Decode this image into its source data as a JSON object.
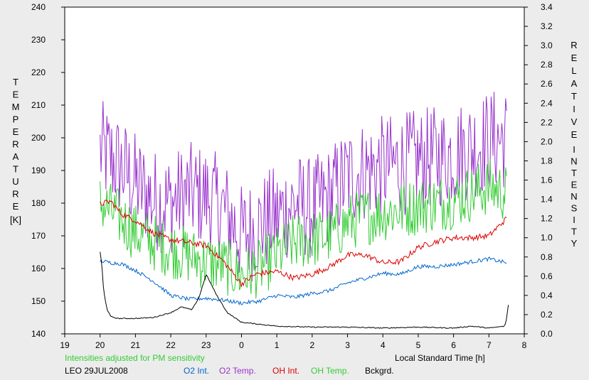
{
  "chart_data": {
    "type": "line",
    "title": "",
    "xlabel": "Local Standard Time [h]",
    "ylabel_left": "TEMPERATURE [K]",
    "ylabel_left_letters": [
      "T",
      "E",
      "M",
      "P",
      "E",
      "R",
      "A",
      "T",
      "U",
      "R",
      "E"
    ],
    "ylabel_left_unit": "[K]",
    "ylabel_right": "RELATIVE INTENSITY",
    "ylabel_right_word1": [
      "R",
      "E",
      "L",
      "A",
      "T",
      "I",
      "V",
      "E"
    ],
    "ylabel_right_word2": [
      "I",
      "N",
      "T",
      "E",
      "N",
      "S",
      "I",
      "T",
      "Y"
    ],
    "note": "Intensities adjusted for PM sensitivity",
    "station_date": "LEO 29JUL2008",
    "xlim": [
      19,
      32
    ],
    "ylim_left": [
      140,
      240
    ],
    "ylim_right": [
      0.0,
      3.4
    ],
    "x_ticks": [
      19,
      20,
      21,
      22,
      23,
      24,
      25,
      26,
      27,
      28,
      29,
      30,
      31,
      32
    ],
    "x_tick_labels": [
      "19",
      "20",
      "21",
      "22",
      "23",
      "0",
      "1",
      "2",
      "3",
      "4",
      "5",
      "6",
      "7",
      "8"
    ],
    "y_left_ticks": [
      140,
      150,
      160,
      170,
      180,
      190,
      200,
      210,
      220,
      230,
      240
    ],
    "y_left_tick_labels": [
      "140",
      "150",
      "160",
      "170",
      "180",
      "190",
      "200",
      "210",
      "220",
      "230",
      "240"
    ],
    "y_right_ticks": [
      0.0,
      0.2,
      0.4,
      0.6,
      0.8,
      1.0,
      1.2,
      1.4,
      1.6,
      1.8,
      2.0,
      2.2,
      2.4,
      2.6,
      2.8,
      3.0,
      3.2,
      3.4
    ],
    "y_right_tick_labels": [
      "0.0",
      "0.2",
      "0.4",
      "0.6",
      "0.8",
      "1.0",
      "1.2",
      "1.4",
      "1.6",
      "1.8",
      "2.0",
      "2.2",
      "2.4",
      "2.6",
      "2.8",
      "3.0",
      "3.2",
      "3.4"
    ],
    "grid": false,
    "legend_position": "bottom",
    "series": [
      {
        "name": "O2 Temp.",
        "axis": "left",
        "color": "#9933cc",
        "x": [
          20.0,
          20.5,
          21.0,
          21.5,
          22.0,
          22.5,
          23.0,
          23.5,
          24.0,
          24.5,
          25.0,
          25.5,
          26.0,
          26.5,
          27.0,
          27.5,
          28.0,
          28.5,
          29.0,
          29.5,
          30.0,
          30.5,
          31.0,
          31.5
        ],
        "y": [
          196,
          192,
          186,
          181,
          180,
          183,
          182,
          178,
          170,
          173,
          176,
          180,
          178,
          182,
          188,
          190,
          191,
          192,
          193,
          194,
          195,
          197,
          199,
          200
        ],
        "noise": 16
      },
      {
        "name": "OH Temp.",
        "axis": "left",
        "color": "#33cc33",
        "x": [
          20.0,
          20.5,
          21.0,
          21.5,
          22.0,
          22.5,
          23.0,
          23.5,
          24.0,
          24.5,
          25.0,
          25.5,
          26.0,
          26.5,
          27.0,
          27.5,
          28.0,
          28.5,
          29.0,
          29.5,
          30.0,
          30.5,
          31.0,
          31.5
        ],
        "y": [
          180,
          176,
          171,
          168,
          166,
          164,
          162,
          161,
          158,
          160,
          164,
          168,
          169,
          170,
          174,
          176,
          177,
          178,
          179,
          180,
          181,
          183,
          185,
          183
        ],
        "noise": 9
      },
      {
        "name": "OH Int.",
        "axis": "right",
        "color": "#dd0000",
        "x": [
          20.0,
          20.3,
          20.6,
          21.0,
          21.5,
          22.0,
          22.5,
          23.0,
          23.5,
          24.0,
          24.4,
          25.0,
          25.5,
          26.0,
          26.5,
          27.0,
          27.5,
          28.0,
          28.5,
          29.0,
          29.5,
          30.0,
          30.5,
          31.0,
          31.5
        ],
        "y": [
          1.35,
          1.38,
          1.25,
          1.18,
          1.05,
          0.98,
          0.95,
          0.92,
          0.75,
          0.52,
          0.62,
          0.65,
          0.58,
          0.62,
          0.7,
          0.82,
          0.82,
          0.74,
          0.75,
          0.9,
          0.96,
          1.0,
          1.0,
          1.02,
          1.2
        ],
        "noise": 0.03
      },
      {
        "name": "O2 Int.",
        "axis": "right",
        "color": "#0066cc",
        "x": [
          20.0,
          20.3,
          20.6,
          21.0,
          21.5,
          22.0,
          22.5,
          23.0,
          23.5,
          24.0,
          24.5,
          25.0,
          25.5,
          26.0,
          26.5,
          27.0,
          27.5,
          28.0,
          28.5,
          29.0,
          29.5,
          30.0,
          30.5,
          31.0,
          31.5
        ],
        "y": [
          0.76,
          0.74,
          0.73,
          0.66,
          0.55,
          0.4,
          0.36,
          0.37,
          0.35,
          0.32,
          0.34,
          0.4,
          0.38,
          0.42,
          0.45,
          0.53,
          0.58,
          0.63,
          0.62,
          0.7,
          0.7,
          0.72,
          0.75,
          0.78,
          0.74
        ],
        "noise": 0.02
      },
      {
        "name": "Bckgrd.",
        "axis": "right",
        "color": "#000000",
        "x": [
          20.0,
          20.05,
          20.1,
          20.2,
          20.3,
          20.5,
          21.0,
          21.5,
          22.0,
          22.3,
          22.6,
          22.8,
          23.0,
          23.3,
          23.6,
          24.0,
          24.5,
          25.0,
          26.0,
          27.0,
          28.0,
          29.0,
          30.0,
          30.5,
          31.0,
          31.45,
          31.5,
          31.55
        ],
        "y": [
          0.85,
          0.72,
          0.45,
          0.25,
          0.18,
          0.16,
          0.16,
          0.17,
          0.22,
          0.28,
          0.25,
          0.38,
          0.62,
          0.4,
          0.22,
          0.12,
          0.1,
          0.08,
          0.07,
          0.07,
          0.06,
          0.07,
          0.06,
          0.08,
          0.06,
          0.08,
          0.16,
          0.3
        ],
        "noise": 0.005
      }
    ]
  }
}
